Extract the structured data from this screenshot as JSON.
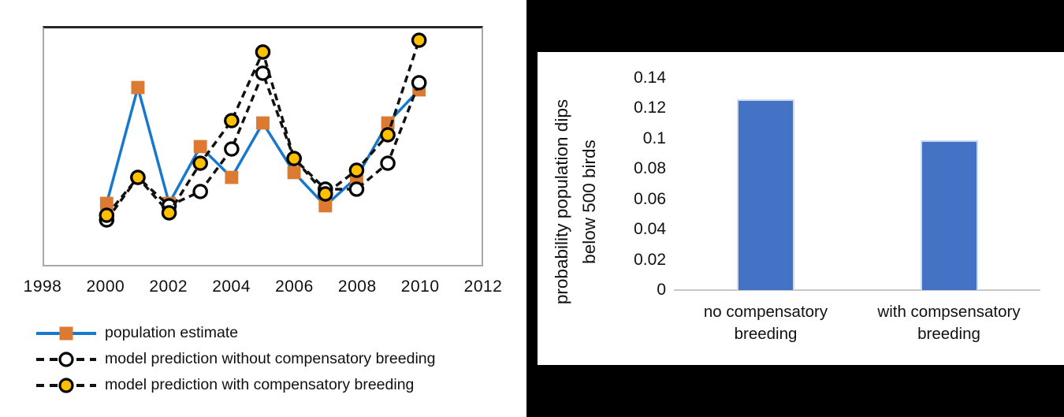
{
  "chart_data": [
    {
      "type": "line",
      "title": "",
      "xlabel": "",
      "ylabel": "",
      "x_ticks": [
        "1998",
        "2000",
        "2002",
        "2004",
        "2006",
        "2008",
        "2010",
        "2012"
      ],
      "x_range": [
        1998,
        2012
      ],
      "years": [
        2000,
        2001,
        2002,
        2003,
        2004,
        2005,
        2006,
        2007,
        2008,
        2009,
        2010
      ],
      "y_axis_tick_labels": "none (y axis unlabeled in figure)",
      "y_unit_note": "values estimated as percent of plot height (no y scale shown)",
      "grid": false,
      "legend_position": "below-left",
      "series": [
        {
          "name": "population estimate",
          "line_style": "solid",
          "line_color": "#1878CD",
          "marker": "filled-square",
          "marker_color": "#DD7A31",
          "values": [
            26,
            75,
            26,
            50,
            37,
            60,
            39,
            25,
            37,
            60,
            74
          ]
        },
        {
          "name": "model prediction without compensatory breeding",
          "line_style": "dashed",
          "line_color": "#111111",
          "marker": "open-circle",
          "marker_color": "#FFFFFF",
          "values": [
            19,
            37,
            25,
            31,
            49,
            81,
            45,
            32,
            32,
            43,
            77
          ]
        },
        {
          "name": "model prediction with compensatory breeding",
          "line_style": "dashed",
          "line_color": "#111111",
          "marker": "filled-circle",
          "marker_color": "#FFC000",
          "values": [
            21,
            37,
            22,
            43,
            61,
            90,
            45,
            30,
            40,
            55,
            95
          ]
        }
      ]
    },
    {
      "type": "bar",
      "title": "",
      "xlabel": "",
      "ylabel": "probability population dips below 500 birds",
      "ylabel_lines": [
        "probability population dips",
        "below 500 birds"
      ],
      "y_ticks": [
        "0.14",
        "0.12",
        "0.1",
        "0.08",
        "0.06",
        "0.04",
        "0.02",
        "0"
      ],
      "ylim": [
        0,
        0.14
      ],
      "categories": [
        "no compensatory breeding",
        "with compsensatory breeding"
      ],
      "category_lines": [
        [
          "no compensatory",
          "breeding"
        ],
        [
          "with compsensatory",
          "breeding"
        ]
      ],
      "values": [
        0.126,
        0.099
      ],
      "bar_color": "#4472C4",
      "panel_background": "#FFFFFF",
      "surround_background": "#000000",
      "grid": false,
      "legend_position": "none"
    }
  ]
}
